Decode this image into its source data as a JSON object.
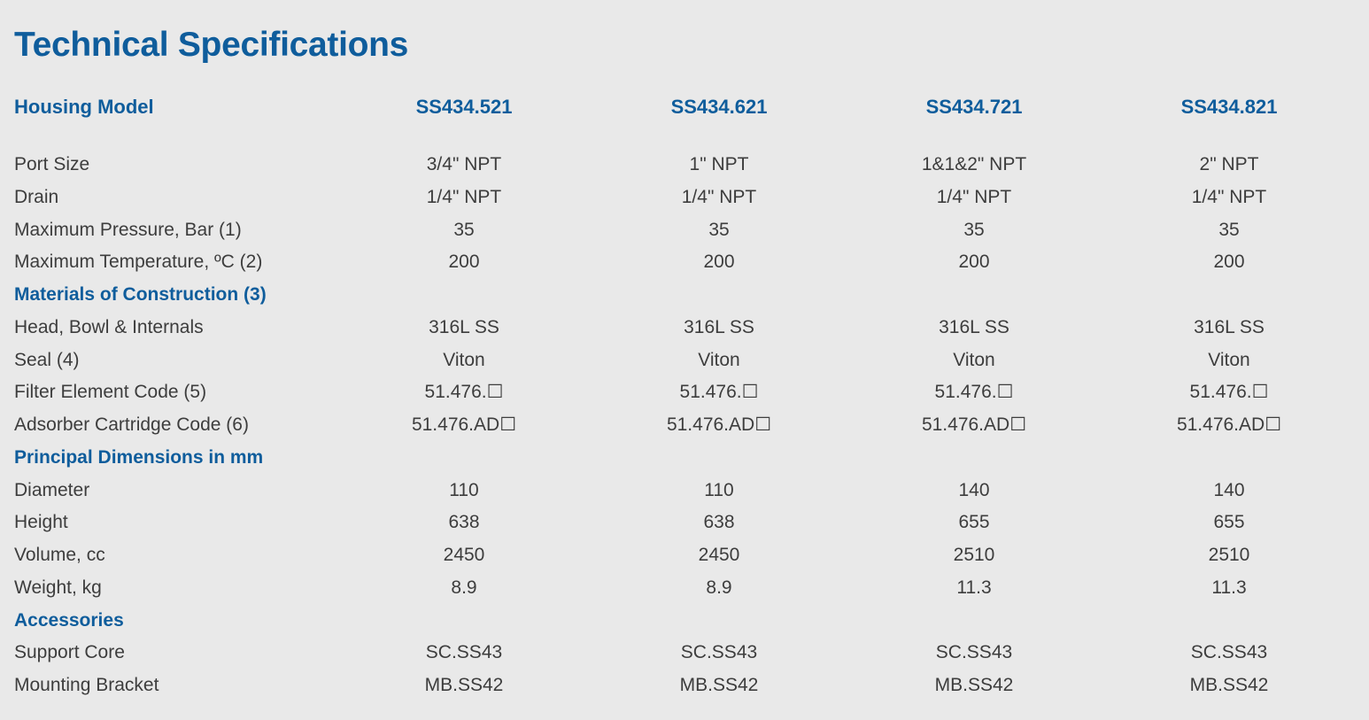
{
  "title": "Technical Specifications",
  "header": {
    "label": "Housing Model",
    "models": [
      "SS434.521",
      "SS434.621",
      "SS434.721",
      "SS434.821"
    ]
  },
  "rows": [
    {
      "type": "data",
      "label": "Port Size",
      "values": [
        "3/4\" NPT",
        "1\" NPT",
        "1&1&2\" NPT",
        "2\" NPT"
      ]
    },
    {
      "type": "data",
      "label": "Drain",
      "values": [
        "1/4\" NPT",
        "1/4\" NPT",
        "1/4\" NPT",
        "1/4\" NPT"
      ]
    },
    {
      "type": "data",
      "label": "Maximum Pressure, Bar (1)",
      "values": [
        "35",
        "35",
        "35",
        "35"
      ]
    },
    {
      "type": "data",
      "label": "Maximum Temperature, ºC (2)",
      "values": [
        "200",
        "200",
        "200",
        "200"
      ]
    },
    {
      "type": "section",
      "label": "Materials of Construction (3)"
    },
    {
      "type": "data",
      "label": "Head, Bowl & Internals",
      "values": [
        "316L SS",
        "316L SS",
        "316L SS",
        "316L SS"
      ]
    },
    {
      "type": "data",
      "label": "Seal (4)",
      "values": [
        "Viton",
        "Viton",
        "Viton",
        "Viton"
      ]
    },
    {
      "type": "data",
      "label": "Filter Element Code (5)",
      "values": [
        "51.476.☐",
        "51.476.☐",
        "51.476.☐",
        "51.476.☐"
      ]
    },
    {
      "type": "data",
      "label": "Adsorber Cartridge Code (6)",
      "values": [
        "51.476.AD☐",
        "51.476.AD☐",
        "51.476.AD☐",
        "51.476.AD☐"
      ]
    },
    {
      "type": "section",
      "label": "Principal Dimensions in mm"
    },
    {
      "type": "data",
      "label": "Diameter",
      "values": [
        "110",
        "110",
        "140",
        "140"
      ]
    },
    {
      "type": "data",
      "label": "Height",
      "values": [
        "638",
        "638",
        "655",
        "655"
      ]
    },
    {
      "type": "data",
      "label": "Volume, cc",
      "values": [
        "2450",
        "2450",
        "2510",
        "2510"
      ]
    },
    {
      "type": "data",
      "label": "Weight, kg",
      "values": [
        "8.9",
        "8.9",
        "11.3",
        "11.3"
      ]
    },
    {
      "type": "section",
      "label": "Accessories"
    },
    {
      "type": "data",
      "label": "Support Core",
      "values": [
        "SC.SS43",
        "SC.SS43",
        "SC.SS43",
        "SC.SS43"
      ]
    },
    {
      "type": "data",
      "label": "Mounting Bracket",
      "values": [
        "MB.SS42",
        "MB.SS42",
        "MB.SS42",
        "MB.SS42"
      ]
    }
  ],
  "colors": {
    "heading": "#0f5d9c",
    "text": "#3d3d3d",
    "background": "#e9e9e9"
  }
}
